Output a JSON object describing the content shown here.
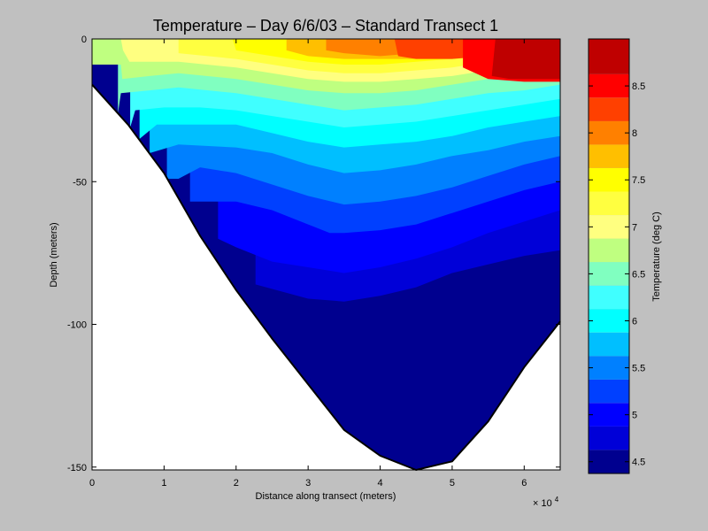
{
  "chart_data": {
    "type": "contour",
    "title": "Temperature – Day 6/6/03 – Standard Transect 1",
    "xlabel": "Distance along transect (meters)",
    "ylabel": "Depth (meters)",
    "x_exponent_label": "× 10",
    "x_exponent_power": "4",
    "xlim": [
      0,
      65000
    ],
    "ylim": [
      -151,
      0
    ],
    "x_ticks": [
      {
        "value": 0,
        "label": "0"
      },
      {
        "value": 10000,
        "label": "1"
      },
      {
        "value": 20000,
        "label": "2"
      },
      {
        "value": 30000,
        "label": "3"
      },
      {
        "value": 40000,
        "label": "4"
      },
      {
        "value": 50000,
        "label": "5"
      },
      {
        "value": 60000,
        "label": "6"
      }
    ],
    "y_ticks": [
      {
        "value": 0,
        "label": "0"
      },
      {
        "value": -50,
        "label": "-50"
      },
      {
        "value": -100,
        "label": "-100"
      },
      {
        "value": -150,
        "label": "-150"
      }
    ],
    "bathymetry": [
      {
        "x": 0,
        "depth": -16
      },
      {
        "x": 5000,
        "depth": -30
      },
      {
        "x": 10000,
        "depth": -47
      },
      {
        "x": 15000,
        "depth": -69
      },
      {
        "x": 20000,
        "depth": -88
      },
      {
        "x": 25000,
        "depth": -105
      },
      {
        "x": 30000,
        "depth": -121
      },
      {
        "x": 35000,
        "depth": -137
      },
      {
        "x": 40000,
        "depth": -146
      },
      {
        "x": 45000,
        "depth": -151
      },
      {
        "x": 50000,
        "depth": -148
      },
      {
        "x": 55000,
        "depth": -134
      },
      {
        "x": 60000,
        "depth": -115
      },
      {
        "x": 65000,
        "depth": -99
      }
    ],
    "isotherms": [
      {
        "level": 4.75,
        "points": [
          [
            22700,
            -86
          ],
          [
            30000,
            -91
          ],
          [
            35000,
            -92
          ],
          [
            40000,
            -90
          ],
          [
            45000,
            -87
          ],
          [
            50000,
            -82
          ],
          [
            55000,
            -79
          ],
          [
            60000,
            -76
          ],
          [
            65000,
            -74
          ]
        ]
      },
      {
        "level": 5.0,
        "points": [
          [
            17500,
            -70
          ],
          [
            20000,
            -73
          ],
          [
            25000,
            -78
          ],
          [
            30000,
            -80
          ],
          [
            35000,
            -82
          ],
          [
            40000,
            -80
          ],
          [
            45000,
            -77
          ],
          [
            50000,
            -73
          ],
          [
            55000,
            -68
          ],
          [
            60000,
            -64
          ],
          [
            65000,
            -60
          ]
        ]
      },
      {
        "level": 5.25,
        "points": [
          [
            13600,
            -57
          ],
          [
            15000,
            -57
          ],
          [
            20000,
            -57
          ],
          [
            25000,
            -60
          ],
          [
            30000,
            -65
          ],
          [
            33000,
            -68
          ],
          [
            35000,
            -68
          ],
          [
            40000,
            -67
          ],
          [
            45000,
            -65
          ],
          [
            50000,
            -61
          ],
          [
            55000,
            -57
          ],
          [
            60000,
            -53
          ],
          [
            65000,
            -50
          ]
        ]
      },
      {
        "level": 5.5,
        "points": [
          [
            10400,
            -49
          ],
          [
            12000,
            -49
          ],
          [
            15000,
            -45
          ],
          [
            20000,
            -47
          ],
          [
            25000,
            -51
          ],
          [
            30000,
            -55
          ],
          [
            35000,
            -58
          ],
          [
            40000,
            -57
          ],
          [
            45000,
            -55
          ],
          [
            50000,
            -52
          ],
          [
            55000,
            -48
          ],
          [
            60000,
            -44
          ],
          [
            65000,
            -41
          ]
        ]
      },
      {
        "level": 5.75,
        "points": [
          [
            8000,
            -40
          ],
          [
            12000,
            -37
          ],
          [
            20000,
            -38
          ],
          [
            25000,
            -40
          ],
          [
            30000,
            -44
          ],
          [
            35000,
            -47
          ],
          [
            40000,
            -46
          ],
          [
            45000,
            -44
          ],
          [
            50000,
            -41
          ],
          [
            55000,
            -39
          ],
          [
            60000,
            -36
          ],
          [
            65000,
            -34
          ]
        ]
      },
      {
        "level": 6.0,
        "points": [
          [
            6600,
            -35
          ],
          [
            9000,
            -30
          ],
          [
            15000,
            -30
          ],
          [
            20000,
            -30
          ],
          [
            25000,
            -33
          ],
          [
            30000,
            -36
          ],
          [
            35000,
            -38
          ],
          [
            40000,
            -37
          ],
          [
            45000,
            -36
          ],
          [
            50000,
            -34
          ],
          [
            55000,
            -31
          ],
          [
            60000,
            -29
          ],
          [
            65000,
            -27
          ]
        ]
      },
      {
        "level": 6.25,
        "points": [
          [
            5300,
            -31
          ],
          [
            6000,
            -25
          ],
          [
            10000,
            -24
          ],
          [
            15000,
            -24
          ],
          [
            20000,
            -25
          ],
          [
            25000,
            -27
          ],
          [
            30000,
            -29
          ],
          [
            35000,
            -31
          ],
          [
            40000,
            -30
          ],
          [
            45000,
            -29
          ],
          [
            50000,
            -27
          ],
          [
            55000,
            -25
          ],
          [
            60000,
            -23
          ],
          [
            65000,
            -21
          ]
        ]
      },
      {
        "level": 6.5,
        "points": [
          [
            3600,
            -26
          ],
          [
            4000,
            -19
          ],
          [
            8000,
            -18
          ],
          [
            12000,
            -17
          ],
          [
            20000,
            -19
          ],
          [
            25000,
            -21
          ],
          [
            30000,
            -23
          ],
          [
            35000,
            -25
          ],
          [
            40000,
            -24
          ],
          [
            45000,
            -23
          ],
          [
            50000,
            -21
          ],
          [
            55000,
            -19
          ],
          [
            60000,
            -18
          ],
          [
            65000,
            -16
          ]
        ]
      },
      {
        "level": 6.75,
        "points": [
          [
            0,
            -9
          ],
          [
            4000,
            -9
          ],
          [
            4200,
            -14
          ],
          [
            8000,
            -13
          ],
          [
            12000,
            -12
          ],
          [
            20000,
            -14
          ],
          [
            25000,
            -16
          ],
          [
            30000,
            -18
          ],
          [
            35000,
            -19
          ],
          [
            40000,
            -19
          ],
          [
            45000,
            -18
          ],
          [
            50000,
            -16
          ],
          [
            55000,
            -14
          ],
          [
            60000,
            -13
          ],
          [
            65000,
            -12
          ]
        ]
      },
      {
        "level": 7.0,
        "points": [
          [
            4000,
            -0.01
          ],
          [
            4300,
            -4
          ],
          [
            5200,
            -8
          ],
          [
            12000,
            -8
          ],
          [
            20000,
            -10
          ],
          [
            25000,
            -12
          ],
          [
            30000,
            -14
          ],
          [
            35000,
            -15
          ],
          [
            40000,
            -15
          ],
          [
            45000,
            -14
          ],
          [
            50000,
            -13
          ],
          [
            55000,
            -11
          ],
          [
            60000,
            -10
          ],
          [
            65000,
            -10
          ]
        ]
      },
      {
        "level": 7.25,
        "points": [
          [
            12000,
            -0.01
          ],
          [
            12000,
            -5
          ],
          [
            20000,
            -7
          ],
          [
            25000,
            -9
          ],
          [
            30000,
            -11
          ],
          [
            35000,
            -12
          ],
          [
            40000,
            -12
          ],
          [
            45000,
            -11
          ],
          [
            50000,
            -10
          ],
          [
            55000,
            -8
          ],
          [
            60000,
            -7
          ],
          [
            65000,
            -7
          ]
        ]
      },
      {
        "level": 7.5,
        "points": [
          [
            19500,
            -0.01
          ],
          [
            20000,
            -4
          ],
          [
            25000,
            -6
          ],
          [
            30000,
            -8
          ],
          [
            35000,
            -9
          ],
          [
            40000,
            -9
          ],
          [
            45000,
            -8
          ],
          [
            50000,
            -7
          ],
          [
            55000,
            -6
          ],
          [
            60000,
            -5
          ],
          [
            65000,
            -5
          ]
        ]
      },
      {
        "level": 7.75,
        "points": [
          [
            27000,
            -0.01
          ],
          [
            27000,
            -4
          ],
          [
            30000,
            -6
          ],
          [
            35000,
            -7
          ],
          [
            40000,
            -7
          ],
          [
            45000,
            -7
          ],
          [
            50000,
            -6
          ],
          [
            55000,
            -5
          ],
          [
            60000,
            -4
          ],
          [
            65000,
            -4
          ]
        ]
      },
      {
        "level": 8.0,
        "points": [
          [
            32500,
            -0.01
          ],
          [
            32500,
            -4
          ],
          [
            35000,
            -5
          ],
          [
            40000,
            -6
          ],
          [
            45000,
            -5
          ],
          [
            50000,
            -4.5
          ],
          [
            55000,
            -4
          ],
          [
            60000,
            -3
          ],
          [
            65000,
            -3
          ]
        ]
      },
      {
        "level": 8.25,
        "points": [
          [
            42000,
            -0.01
          ],
          [
            42500,
            -6
          ],
          [
            45000,
            -7
          ],
          [
            50000,
            -7
          ],
          [
            55000,
            -6
          ],
          [
            60000,
            -5
          ],
          [
            65000,
            -5
          ]
        ]
      },
      {
        "level": 8.5,
        "points": [
          [
            51500,
            -0.01
          ],
          [
            51500,
            -10
          ],
          [
            55000,
            -14
          ],
          [
            60000,
            -15
          ],
          [
            65000,
            -15
          ]
        ]
      },
      {
        "level": 8.75,
        "points": [
          [
            56000,
            -0.01
          ],
          [
            55500,
            -13
          ],
          [
            58000,
            -14
          ],
          [
            62000,
            -14
          ],
          [
            65000,
            -14
          ]
        ]
      }
    ],
    "colorbar": {
      "label": "Temperature (deg C)",
      "clim": [
        4.375,
        9.0
      ],
      "ticks": [
        {
          "value": 4.5,
          "label": "4.5"
        },
        {
          "value": 5,
          "label": "5"
        },
        {
          "value": 5.5,
          "label": "5.5"
        },
        {
          "value": 6,
          "label": "6"
        },
        {
          "value": 6.5,
          "label": "6.5"
        },
        {
          "value": 7,
          "label": "7"
        },
        {
          "value": 7.5,
          "label": "7.5"
        },
        {
          "value": 8,
          "label": "8"
        },
        {
          "value": 8.5,
          "label": "8.5"
        }
      ],
      "bands": [
        {
          "from": 4.375,
          "to": 4.625,
          "color": "#00008f"
        },
        {
          "from": 4.625,
          "to": 4.875,
          "color": "#0000d8"
        },
        {
          "from": 4.875,
          "to": 5.125,
          "color": "#0000ff"
        },
        {
          "from": 5.125,
          "to": 5.375,
          "color": "#0040ff"
        },
        {
          "from": 5.375,
          "to": 5.625,
          "color": "#0080ff"
        },
        {
          "from": 5.625,
          "to": 5.875,
          "color": "#00bfff"
        },
        {
          "from": 5.875,
          "to": 6.125,
          "color": "#00ffff"
        },
        {
          "from": 6.125,
          "to": 6.375,
          "color": "#40ffff"
        },
        {
          "from": 6.375,
          "to": 6.625,
          "color": "#80ffc0"
        },
        {
          "from": 6.625,
          "to": 6.875,
          "color": "#bfff80"
        },
        {
          "from": 6.875,
          "to": 7.125,
          "color": "#ffff80"
        },
        {
          "from": 7.125,
          "to": 7.375,
          "color": "#ffff40"
        },
        {
          "from": 7.375,
          "to": 7.625,
          "color": "#ffff00"
        },
        {
          "from": 7.625,
          "to": 7.875,
          "color": "#ffbf00"
        },
        {
          "from": 7.875,
          "to": 8.125,
          "color": "#ff8000"
        },
        {
          "from": 8.125,
          "to": 8.375,
          "color": "#ff4000"
        },
        {
          "from": 8.375,
          "to": 8.625,
          "color": "#ff0000"
        },
        {
          "from": 8.625,
          "to": 9.0,
          "color": "#bf0000"
        }
      ]
    },
    "colors": {
      "figure_bg": "#c0c0c0",
      "axes_bg": "#ffffff",
      "bottom_fill": "#00008f",
      "top_fill": "#bf0000"
    }
  }
}
